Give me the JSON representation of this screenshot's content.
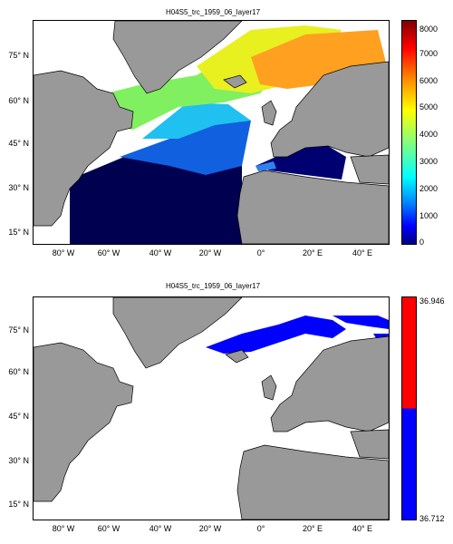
{
  "panels": [
    {
      "title": "H04S5_trc_1959_06_layer17",
      "colorbar": {
        "ticks": [
          "8000",
          "7000",
          "6000",
          "5000",
          "4000",
          "3000",
          "2000",
          "1000",
          "0"
        ],
        "colors": [
          "#000080",
          "#0000ff",
          "#0080ff",
          "#00ffff",
          "#80ff80",
          "#ffff00",
          "#ff8000",
          "#ff0000",
          "#800000"
        ]
      }
    },
    {
      "title": "H04S5_trc_1959_06_layer17",
      "colorbar": {
        "ticks": [
          "36.946",
          "36.712"
        ],
        "colors": [
          "#ff0000",
          "#0000ff"
        ]
      }
    }
  ],
  "lat_ticks": [
    "75° N",
    "60° N",
    "45° N",
    "30° N",
    "15° N"
  ],
  "lon_ticks": [
    "80° W",
    "60° W",
    "40° W",
    "20° W",
    "0°",
    "20° E",
    "40° E"
  ],
  "land_color": "#999999",
  "ocean_fill_top": "#000050",
  "ocean_fill_bottom": "#ffffff"
}
